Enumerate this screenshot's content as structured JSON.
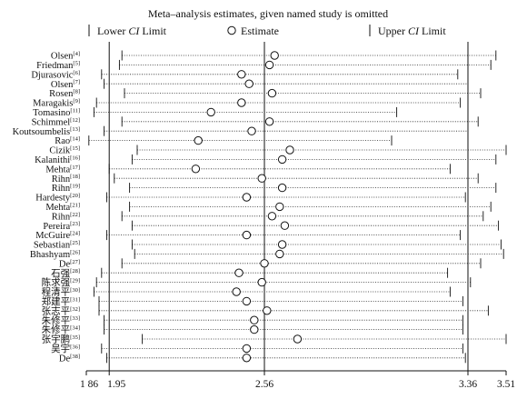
{
  "chart_data": {
    "type": "forest",
    "title": "Meta–analysis estimates, given named study is omitted",
    "legend": {
      "lower": [
        "Lower ",
        "CI",
        " Limit"
      ],
      "estimate": "Estimate",
      "upper": [
        "Upper ",
        "CI",
        " Limit"
      ]
    },
    "xlim": [
      1.86,
      3.51
    ],
    "ticks": [
      {
        "value": 1.86,
        "label": "1 86"
      },
      {
        "value": 1.95,
        "label": "1.95"
      },
      {
        "value": 2.56,
        "label": "2.56"
      },
      {
        "value": 3.36,
        "label": "3.36"
      },
      {
        "value": 3.51,
        "label": "3.51"
      }
    ],
    "reference_lines": [
      1.95,
      2.56,
      3.36
    ],
    "studies": [
      {
        "name": "Olsen",
        "ref": "[4]",
        "lower": 2.0,
        "estimate": 2.6,
        "upper": 3.47
      },
      {
        "name": "Friedman",
        "ref": "[5]",
        "lower": 1.99,
        "estimate": 2.58,
        "upper": 3.45
      },
      {
        "name": "Djurasovic",
        "ref": "[6]",
        "lower": 1.92,
        "estimate": 2.47,
        "upper": 3.32
      },
      {
        "name": "Olsen",
        "ref": "[7]",
        "lower": 1.93,
        "estimate": 2.5,
        "upper": 3.36
      },
      {
        "name": "Rosen",
        "ref": "[8]",
        "lower": 2.01,
        "estimate": 2.59,
        "upper": 3.41
      },
      {
        "name": "Maragakis",
        "ref": "[9]",
        "lower": 1.9,
        "estimate": 2.47,
        "upper": 3.33
      },
      {
        "name": "Tomasino",
        "ref": "[11]",
        "lower": 1.89,
        "estimate": 2.35,
        "upper": 3.08
      },
      {
        "name": "Schimmel",
        "ref": "[12]",
        "lower": 2.0,
        "estimate": 2.58,
        "upper": 3.4
      },
      {
        "name": "Koutsoumbelis",
        "ref": "[13]",
        "lower": 1.93,
        "estimate": 2.51,
        "upper": 3.36
      },
      {
        "name": "Rao",
        "ref": "[14]",
        "lower": 1.87,
        "estimate": 2.3,
        "upper": 3.06
      },
      {
        "name": "Cizik",
        "ref": "[15]",
        "lower": 2.06,
        "estimate": 2.66,
        "upper": 3.51
      },
      {
        "name": "Kalanithi",
        "ref": "[16]",
        "lower": 2.04,
        "estimate": 2.63,
        "upper": 3.47
      },
      {
        "name": "Mehta",
        "ref": "[17]",
        "lower": 1.95,
        "estimate": 2.29,
        "upper": 3.29
      },
      {
        "name": "Rihn",
        "ref": "[18]",
        "lower": 1.97,
        "estimate": 2.55,
        "upper": 3.4
      },
      {
        "name": "Rihn",
        "ref": "[19]",
        "lower": 2.03,
        "estimate": 2.63,
        "upper": 3.47
      },
      {
        "name": "Hardesty",
        "ref": "[20]",
        "lower": 1.94,
        "estimate": 2.49,
        "upper": 3.35
      },
      {
        "name": "Mehta",
        "ref": "[21]",
        "lower": 2.03,
        "estimate": 2.62,
        "upper": 3.45
      },
      {
        "name": "Rihn",
        "ref": "[22]",
        "lower": 2.0,
        "estimate": 2.59,
        "upper": 3.42
      },
      {
        "name": "Pereira",
        "ref": "[23]",
        "lower": 2.04,
        "estimate": 2.64,
        "upper": 3.48
      },
      {
        "name": "McGuire",
        "ref": "[24]",
        "lower": 1.94,
        "estimate": 2.49,
        "upper": 3.33
      },
      {
        "name": "Sebastian",
        "ref": "[25]",
        "lower": 2.04,
        "estimate": 2.63,
        "upper": 3.49
      },
      {
        "name": "Bhashyam",
        "ref": "[26]",
        "lower": 2.05,
        "estimate": 2.62,
        "upper": 3.5
      },
      {
        "name": "De",
        "ref": "[27]",
        "lower": 2.0,
        "estimate": 2.56,
        "upper": 3.41
      },
      {
        "name": "石强",
        "ref": "[28]",
        "lower": 1.92,
        "estimate": 2.46,
        "upper": 3.28
      },
      {
        "name": "陈求强",
        "ref": "[29]",
        "lower": 1.9,
        "estimate": 2.55,
        "upper": 3.37
      },
      {
        "name": "程清平",
        "ref": "[30]",
        "lower": 1.89,
        "estimate": 2.45,
        "upper": 3.29
      },
      {
        "name": "郑建平",
        "ref": "[31]",
        "lower": 1.91,
        "estimate": 2.49,
        "upper": 3.34
      },
      {
        "name": "张志平",
        "ref": "[32]",
        "lower": 1.91,
        "estimate": 2.57,
        "upper": 3.44
      },
      {
        "name": "朱修平",
        "ref": "[33]",
        "lower": 1.93,
        "estimate": 2.52,
        "upper": 3.34
      },
      {
        "name": "朱修平",
        "ref": "[34]",
        "lower": 1.93,
        "estimate": 2.52,
        "upper": 3.34
      },
      {
        "name": "张宇鹏",
        "ref": "[35]",
        "lower": 2.08,
        "estimate": 2.69,
        "upper": 3.51
      },
      {
        "name": "吴宇",
        "ref": "[36]",
        "lower": 1.92,
        "estimate": 2.49,
        "upper": 3.34
      },
      {
        "name": "De",
        "ref": "[38]",
        "lower": 1.94,
        "estimate": 2.49,
        "upper": 3.35
      }
    ]
  }
}
